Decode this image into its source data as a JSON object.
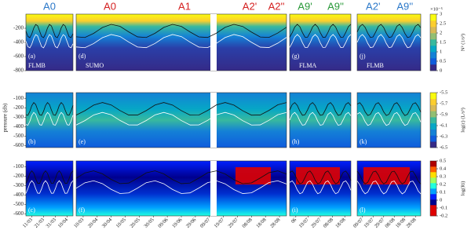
{
  "figure": {
    "ylabel": "pressure (db)",
    "rows": [
      {
        "ylim": [
          -800,
          0
        ],
        "yticks": [
          -200,
          -400,
          -600,
          -800
        ],
        "colorbar": {
          "lim": [
            0,
            3
          ],
          "ticks": [
            0,
            0.5,
            1,
            1.5,
            2,
            2.5,
            3
          ],
          "label": "N² (1/s²)",
          "exponent": "×10⁻⁵",
          "colors": [
            "#352a87",
            "#0f5cdd",
            "#1481d6",
            "#06a7c6",
            "#38b99e",
            "#92bf73",
            "#d9ba56",
            "#fcce2e",
            "#f9fb0e"
          ]
        }
      },
      {
        "ylim": [
          -620,
          -40
        ],
        "yticks": [
          -100,
          -200,
          -300,
          -400,
          -500,
          -600
        ],
        "colorbar": {
          "lim": [
            -6.5,
            -5.5
          ],
          "ticks": [
            -5.5,
            -5.7,
            -5.9,
            -6.1,
            -6.3,
            -6.5
          ],
          "label": "log(ε) (L/s³)",
          "colors": [
            "#352a87",
            "#0f5cdd",
            "#1481d6",
            "#06a7c6",
            "#38b99e",
            "#92bf73",
            "#d9ba56",
            "#fcce2e",
            "#f9fb0e"
          ]
        }
      },
      {
        "ylim": [
          -620,
          -40
        ],
        "yticks": [
          -100,
          -200,
          -300,
          -400,
          -500,
          -600
        ],
        "colorbar": {
          "lim": [
            -0.2,
            0.5
          ],
          "ticks": [
            0.5,
            0.4,
            0.3,
            0.2,
            0.1,
            0,
            -0.1,
            -0.2
          ],
          "label": "log(Ri)",
          "colors": [
            "#e00000",
            "#e00000",
            "#00008f",
            "#0020ff",
            "#00a0ff",
            "#20ffdf",
            "#9fff60",
            "#ffdf00",
            "#ff6000",
            "#af0000"
          ]
        }
      }
    ],
    "columns": [
      {
        "float": "FLMB",
        "letters": [
          "(a)",
          "(b)",
          "(c)"
        ],
        "titles": [
          {
            "text": "A0",
            "color": "#2b78c9"
          }
        ],
        "xticks": [
          "11/03",
          "21/03",
          "31/03",
          "10/04"
        ]
      },
      {
        "float": "SUMO",
        "letters": [
          "(d)",
          "(e)",
          "(f)"
        ],
        "titles": [
          {
            "text": "A0",
            "color": "#d42020"
          },
          {
            "text": "A1",
            "color": "#d42020"
          },
          {
            "text": "A2'",
            "color": "#d42020"
          },
          {
            "text": "A2''",
            "color": "#d42020"
          }
        ],
        "xticks": [
          "10/03",
          "20/04",
          "30/04",
          "10/05",
          "20/05",
          "30/05",
          "09/06",
          "19/06",
          "29/06",
          "09/07",
          "19/07",
          "29/07",
          "08/08",
          "18/08",
          "28/08"
        ]
      },
      {
        "float": "FLMA",
        "letters": [
          "(g)",
          "(h)",
          "(i)"
        ],
        "titles": [
          {
            "text": "A9'",
            "color": "#2a9a3a"
          },
          {
            "text": "A9''",
            "color": "#2a9a3a"
          }
        ],
        "xticks": [
          "06",
          "19/07",
          "29/07",
          "08/08",
          "18/08"
        ]
      },
      {
        "float": "FLMB",
        "letters": [
          "(j)",
          "(k)",
          "(l)"
        ],
        "titles": [
          {
            "text": "A2'",
            "color": "#2b78c9"
          },
          {
            "text": "A9''",
            "color": "#2b78c9"
          }
        ],
        "xticks": [
          "09/07",
          "19/07",
          "29/07",
          "08/08",
          "18/08",
          "28/08"
        ]
      }
    ]
  }
}
